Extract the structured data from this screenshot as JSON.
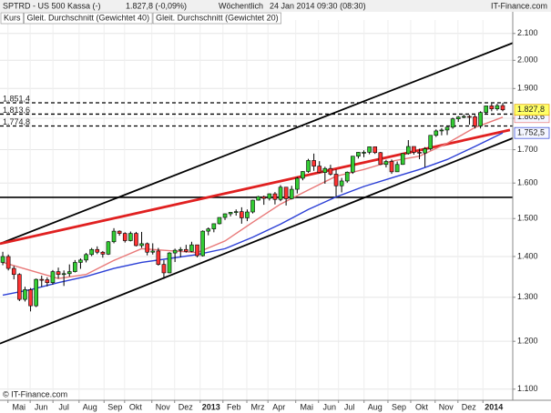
{
  "chart_data": {
    "type": "candlestick",
    "header": {
      "symbol": "SPTRD - US 500 Kassa (-)",
      "quote": "1.827,8 (-0,09%)",
      "interval": "Wöchentlich",
      "timestamp": "24 Jan 2014 09:30 (08:30)",
      "brand": "IT-Finance.com"
    },
    "footer": "© IT-Finance.com",
    "log_scale": true,
    "grid": true,
    "xlim": [
      -0.5,
      91.8
    ],
    "xticks": [
      {
        "value": 2.9,
        "label": "Mai"
      },
      {
        "value": 6.9,
        "label": "Jun"
      },
      {
        "value": 11,
        "label": "Jul"
      },
      {
        "value": 15.7,
        "label": "Aug"
      },
      {
        "value": 20.2,
        "label": "Sep"
      },
      {
        "value": 23.9,
        "label": "Okt"
      },
      {
        "value": 28.8,
        "label": "Nov"
      },
      {
        "value": 32.9,
        "label": "Dez"
      },
      {
        "value": 37.5,
        "label": "2013"
      },
      {
        "value": 41.6,
        "label": "Feb"
      },
      {
        "value": 45.9,
        "label": "Mrz"
      },
      {
        "value": 49.7,
        "label": "Apr"
      },
      {
        "value": 54.7,
        "label": "Mai"
      },
      {
        "value": 58.8,
        "label": "Jun"
      },
      {
        "value": 62.4,
        "label": "Jul"
      },
      {
        "value": 67,
        "label": "Aug"
      },
      {
        "value": 71.3,
        "label": "Sep"
      },
      {
        "value": 75.4,
        "label": "Okt"
      },
      {
        "value": 79.8,
        "label": "Nov"
      },
      {
        "value": 83.9,
        "label": "Dez"
      },
      {
        "value": 88.4,
        "label": "2014"
      }
    ],
    "ylim": [
      1078,
      2152
    ],
    "yticks": [
      {
        "value": 1100,
        "label": "1.100"
      },
      {
        "value": 1200,
        "label": "1.200"
      },
      {
        "value": 1300,
        "label": "1.300"
      },
      {
        "value": 1400,
        "label": "1.400"
      },
      {
        "value": 1500,
        "label": "1.500"
      },
      {
        "value": 1600,
        "label": "1.600"
      },
      {
        "value": 1700,
        "label": "1.700"
      },
      {
        "value": 1800,
        "label": "1.800"
      },
      {
        "value": 1900,
        "label": "1.900"
      },
      {
        "value": 2000,
        "label": "2.000"
      },
      {
        "value": 2100,
        "label": "2.100"
      }
    ],
    "candles": {
      "name": "Kurs",
      "up_color": "#33cc33",
      "down_color": "#ff3333",
      "label_color": "#ffff66",
      "open": [
        1385,
        1400,
        1370,
        1355,
        1295,
        1318,
        1280,
        1343,
        1342,
        1335,
        1362,
        1355,
        1357,
        1362,
        1385,
        1391,
        1405,
        1418,
        1411,
        1406,
        1438,
        1466,
        1460,
        1441,
        1460,
        1428,
        1433,
        1411,
        1414,
        1380,
        1359,
        1409,
        1416,
        1418,
        1413,
        1430,
        1402,
        1466,
        1472,
        1486,
        1503,
        1513,
        1517,
        1519,
        1502,
        1518,
        1551,
        1561,
        1556,
        1569,
        1553,
        1588,
        1555,
        1582,
        1614,
        1634,
        1667,
        1650,
        1631,
        1643,
        1626,
        1592,
        1606,
        1632,
        1680,
        1692,
        1692,
        1709,
        1691,
        1655,
        1664,
        1633,
        1655,
        1688,
        1710,
        1692,
        1690,
        1703,
        1745,
        1759,
        1762,
        1771,
        1798,
        1804,
        1806,
        1805,
        1775,
        1819,
        1841,
        1831,
        1842
      ],
      "high": [
        1412,
        1405,
        1376,
        1358,
        1325,
        1322,
        1345,
        1352,
        1348,
        1366,
        1372,
        1365,
        1380,
        1391,
        1395,
        1409,
        1422,
        1426,
        1414,
        1440,
        1474,
        1468,
        1463,
        1465,
        1464,
        1464,
        1436,
        1434,
        1422,
        1391,
        1411,
        1420,
        1424,
        1430,
        1438,
        1430,
        1468,
        1476,
        1486,
        1503,
        1514,
        1518,
        1525,
        1531,
        1525,
        1552,
        1563,
        1564,
        1570,
        1574,
        1594,
        1588,
        1592,
        1618,
        1635,
        1672,
        1688,
        1665,
        1648,
        1654,
        1640,
        1615,
        1634,
        1680,
        1693,
        1698,
        1710,
        1709,
        1693,
        1669,
        1670,
        1664,
        1689,
        1730,
        1709,
        1703,
        1708,
        1745,
        1764,
        1768,
        1772,
        1802,
        1807,
        1813,
        1811,
        1811,
        1823,
        1842,
        1849,
        1848,
        1851
      ],
      "low": [
        1378,
        1365,
        1343,
        1291,
        1290,
        1267,
        1277,
        1325,
        1326,
        1330,
        1345,
        1327,
        1350,
        1360,
        1369,
        1385,
        1401,
        1406,
        1397,
        1404,
        1434,
        1454,
        1436,
        1439,
        1426,
        1422,
        1403,
        1405,
        1377,
        1344,
        1358,
        1386,
        1398,
        1410,
        1411,
        1398,
        1400,
        1455,
        1463,
        1484,
        1496,
        1506,
        1508,
        1486,
        1493,
        1514,
        1550,
        1538,
        1550,
        1539,
        1548,
        1536,
        1553,
        1570,
        1608,
        1630,
        1636,
        1629,
        1598,
        1622,
        1561,
        1573,
        1601,
        1627,
        1673,
        1677,
        1686,
        1687,
        1653,
        1646,
        1627,
        1633,
        1654,
        1685,
        1685,
        1671,
        1647,
        1698,
        1740,
        1745,
        1746,
        1766,
        1788,
        1800,
        1779,
        1767,
        1767,
        1815,
        1823,
        1825,
        1823
      ],
      "values": [
        1400,
        1370,
        1355,
        1295,
        1318,
        1280,
        1343,
        1342,
        1335,
        1362,
        1355,
        1357,
        1362,
        1385,
        1391,
        1405,
        1418,
        1411,
        1406,
        1438,
        1466,
        1460,
        1441,
        1460,
        1428,
        1433,
        1411,
        1414,
        1380,
        1359,
        1409,
        1416,
        1418,
        1413,
        1430,
        1402,
        1466,
        1472,
        1486,
        1503,
        1513,
        1517,
        1519,
        1502,
        1518,
        1551,
        1561,
        1556,
        1569,
        1553,
        1588,
        1555,
        1582,
        1614,
        1634,
        1667,
        1650,
        1631,
        1643,
        1626,
        1592,
        1606,
        1632,
        1680,
        1692,
        1692,
        1709,
        1691,
        1655,
        1664,
        1633,
        1655,
        1688,
        1710,
        1692,
        1690,
        1703,
        1745,
        1759,
        1762,
        1771,
        1798,
        1804,
        1806,
        1805,
        1775,
        1819,
        1841,
        1831,
        1842,
        1827.8
      ],
      "value_labels": [
        null,
        null,
        null,
        null,
        null,
        null,
        null,
        null,
        null,
        null,
        null,
        null,
        null,
        null,
        null,
        null,
        null,
        null,
        null,
        null,
        null,
        null,
        null,
        null,
        null,
        null,
        null,
        null,
        null,
        null,
        null,
        null,
        null,
        null,
        null,
        null,
        null,
        null,
        null,
        null,
        null,
        null,
        null,
        null,
        null,
        null,
        null,
        null,
        null,
        null,
        null,
        null,
        null,
        null,
        null,
        null,
        null,
        null,
        null,
        null,
        null,
        null,
        null,
        null,
        null,
        null,
        null,
        null,
        null,
        null,
        null,
        null,
        null,
        null,
        null,
        null,
        null,
        null,
        null,
        null,
        null,
        null,
        null,
        null,
        null,
        null,
        null,
        null,
        null,
        null,
        "1.827,8"
      ]
    },
    "series": [
      {
        "name": "Gleit. Durchschnitt (Gewichtet 40)",
        "color": "#2b3fd6",
        "x": [
          0,
          5,
          10,
          15,
          20,
          25,
          30,
          35,
          40,
          45,
          50,
          55,
          60,
          65,
          70,
          75,
          80,
          85,
          90
        ],
        "values": [
          1305,
          1318,
          1335,
          1350,
          1370,
          1385,
          1395,
          1405,
          1420,
          1450,
          1485,
          1525,
          1560,
          1590,
          1615,
          1640,
          1670,
          1710,
          1752.5
        ],
        "value_labels": [
          null,
          null,
          null,
          null,
          null,
          null,
          null,
          null,
          null,
          null,
          null,
          null,
          null,
          null,
          null,
          null,
          null,
          null,
          "1.752,5"
        ]
      },
      {
        "name": "Gleit. Durchschnitt (Gewichtet 20)",
        "color": "#e87878",
        "x": [
          0,
          5,
          10,
          15,
          20,
          25,
          30,
          35,
          40,
          45,
          50,
          55,
          60,
          65,
          70,
          75,
          80,
          85,
          90
        ],
        "values": [
          1385,
          1365,
          1345,
          1355,
          1390,
          1420,
          1415,
          1410,
          1440,
          1490,
          1540,
          1580,
          1620,
          1640,
          1665,
          1680,
          1720,
          1770,
          1803.6
        ],
        "value_labels": [
          null,
          null,
          null,
          null,
          null,
          null,
          null,
          null,
          null,
          null,
          null,
          null,
          null,
          null,
          null,
          null,
          null,
          null,
          "1.803,6"
        ]
      }
    ],
    "levels": [
      {
        "value": 1851.4,
        "label": "1.851,4",
        "style": "dashed"
      },
      {
        "value": 1813.6,
        "label": "1.813,6",
        "style": "dashed"
      },
      {
        "value": 1774.8,
        "label": "1.774,8",
        "style": "dashed"
      },
      {
        "value": 1559,
        "style": "solid"
      }
    ],
    "trendlines": [
      {
        "color": "#000000",
        "x": [
          -0.5,
          91.8
        ],
        "values": [
          1433,
          2064
        ]
      },
      {
        "color": "#000000",
        "x": [
          -0.5,
          91.8
        ],
        "values": [
          1195,
          1736
        ]
      },
      {
        "color": "#e02020",
        "x": [
          -0.5,
          91.3
        ],
        "values": [
          1433,
          1762
        ]
      }
    ]
  }
}
